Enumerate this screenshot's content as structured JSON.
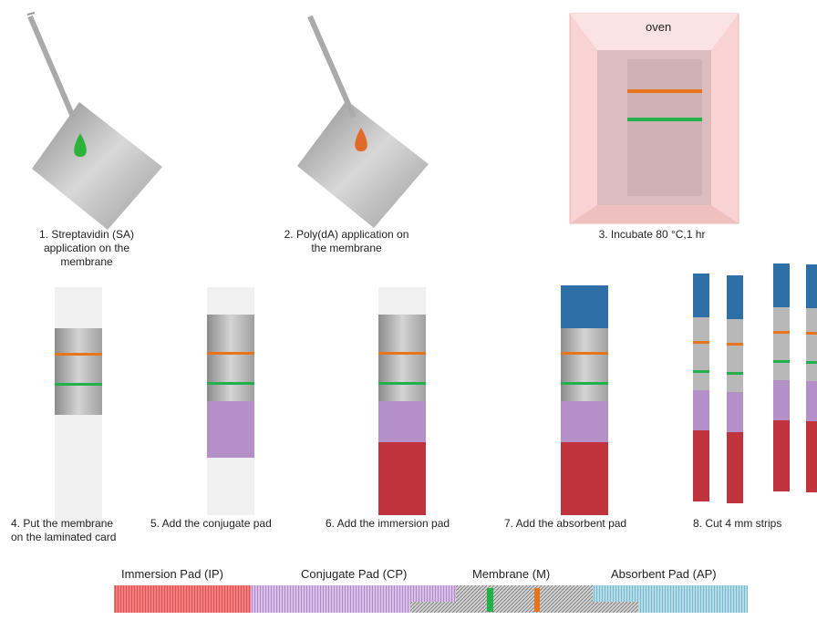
{
  "oven_label": "oven",
  "steps": [
    {
      "lines": [
        "1. Streptavidin (SA)",
        "application on the",
        "membrane"
      ]
    },
    {
      "lines": [
        "2. Poly(dA) application on",
        "the membrane"
      ]
    },
    {
      "lines": [
        "3. Incubate 80 °C,1 hr"
      ]
    },
    {
      "lines": [
        "4. Put the membrane",
        "on the laminated card"
      ]
    },
    {
      "lines": [
        "5. Add the conjugate pad"
      ]
    },
    {
      "lines": [
        "6. Add the immersion pad"
      ]
    },
    {
      "lines": [
        "7. Add the absorbent pad"
      ]
    },
    {
      "lines": [
        "8. Cut 4 mm strips"
      ]
    }
  ],
  "legend": [
    "Immersion Pad (IP)",
    "Conjugate Pad (CP)",
    "Membrane (M)",
    "Absorbent Pad (AP)"
  ]
}
